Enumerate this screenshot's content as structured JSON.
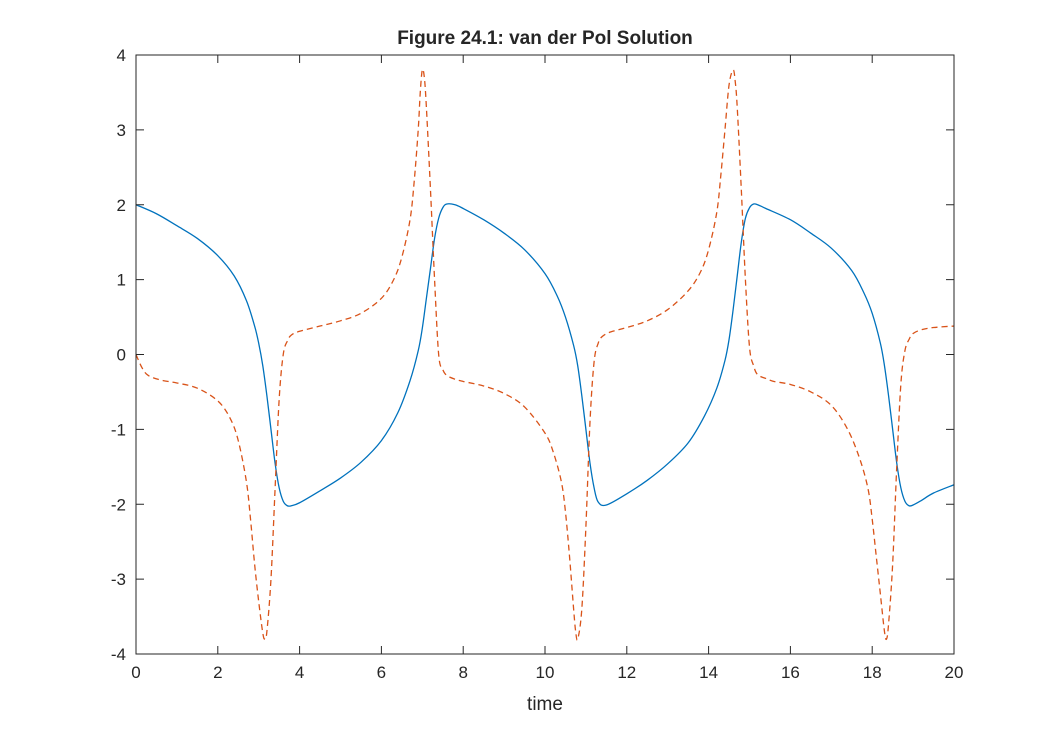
{
  "chart_data": {
    "type": "line",
    "title": "Figure 24.1: van der Pol Solution",
    "xlabel": "time",
    "ylabel": "",
    "xlim": [
      0,
      20
    ],
    "ylim": [
      -4,
      4
    ],
    "xticks": [
      0,
      2,
      4,
      6,
      8,
      10,
      12,
      14,
      16,
      18,
      20
    ],
    "yticks": [
      -4,
      -3,
      -2,
      -1,
      0,
      1,
      2,
      3,
      4
    ],
    "grid": false,
    "legend": "none",
    "series": [
      {
        "color": "#0072BD",
        "style": "solid",
        "x": [
          0,
          0.5,
          1,
          1.5,
          2,
          2.4,
          2.7,
          2.9,
          3.0,
          3.1,
          3.2,
          3.3,
          3.4,
          3.5,
          3.6,
          3.7,
          3.8,
          4.0,
          4.5,
          5,
          5.5,
          6,
          6.4,
          6.7,
          6.9,
          7.0,
          7.1,
          7.2,
          7.3,
          7.4,
          7.5,
          7.6,
          7.8,
          8.0,
          8.5,
          9,
          9.5,
          10,
          10.3,
          10.5,
          10.7,
          10.8,
          10.9,
          11.0,
          11.1,
          11.2,
          11.3,
          11.5,
          12,
          12.5,
          13,
          13.5,
          13.9,
          14.2,
          14.4,
          14.5,
          14.6,
          14.7,
          14.8,
          14.9,
          15.0,
          15.1,
          15.2,
          15.4,
          16,
          16.5,
          17,
          17.5,
          17.8,
          18.0,
          18.2,
          18.3,
          18.4,
          18.5,
          18.6,
          18.7,
          18.8,
          18.9,
          19.0,
          19.2,
          19.5,
          20
        ],
        "y": [
          2.0,
          1.88,
          1.72,
          1.55,
          1.32,
          1.05,
          0.72,
          0.38,
          0.15,
          -0.15,
          -0.55,
          -1.0,
          -1.45,
          -1.78,
          -1.96,
          -2.02,
          -2.02,
          -1.98,
          -1.82,
          -1.65,
          -1.44,
          -1.15,
          -0.78,
          -0.35,
          0.05,
          0.35,
          0.75,
          1.15,
          1.55,
          1.82,
          1.96,
          2.01,
          2.0,
          1.95,
          1.8,
          1.62,
          1.4,
          1.08,
          0.78,
          0.5,
          0.12,
          -0.15,
          -0.55,
          -1.0,
          -1.45,
          -1.78,
          -1.97,
          -2.01,
          -1.86,
          -1.68,
          -1.46,
          -1.18,
          -0.82,
          -0.45,
          -0.08,
          0.2,
          0.6,
          1.05,
          1.5,
          1.82,
          1.96,
          2.01,
          2.0,
          1.95,
          1.8,
          1.62,
          1.42,
          1.12,
          0.82,
          0.55,
          0.15,
          -0.15,
          -0.55,
          -1.0,
          -1.45,
          -1.78,
          -1.96,
          -2.02,
          -2.01,
          -1.95,
          -1.85,
          -1.74
        ]
      },
      {
        "color": "#D95319",
        "style": "dashed",
        "x": [
          0,
          0.15,
          0.3,
          0.6,
          1,
          1.5,
          2,
          2.3,
          2.5,
          2.7,
          2.8,
          2.9,
          3.0,
          3.1,
          3.15,
          3.2,
          3.3,
          3.4,
          3.5,
          3.6,
          3.7,
          3.8,
          4.0,
          4.5,
          5,
          5.5,
          6,
          6.3,
          6.5,
          6.7,
          6.8,
          6.9,
          6.95,
          7.0,
          7.05,
          7.1,
          7.2,
          7.3,
          7.4,
          7.5,
          7.6,
          7.8,
          8.0,
          8.5,
          9,
          9.5,
          10,
          10.2,
          10.4,
          10.5,
          10.6,
          10.7,
          10.75,
          10.8,
          10.9,
          11.0,
          11.1,
          11.2,
          11.3,
          11.4,
          11.6,
          12,
          12.5,
          13,
          13.5,
          13.8,
          14.0,
          14.2,
          14.3,
          14.4,
          14.5,
          14.6,
          14.65,
          14.7,
          14.8,
          14.9,
          15.0,
          15.1,
          15.2,
          15.4,
          15.6,
          16,
          16.5,
          17,
          17.4,
          17.7,
          17.9,
          18.0,
          18.1,
          18.2,
          18.3,
          18.35,
          18.4,
          18.5,
          18.6,
          18.7,
          18.8,
          18.9,
          19.0,
          19.2,
          19.5,
          20
        ],
        "y": [
          0.0,
          -0.18,
          -0.28,
          -0.34,
          -0.38,
          -0.45,
          -0.62,
          -0.85,
          -1.15,
          -1.7,
          -2.2,
          -2.8,
          -3.3,
          -3.72,
          -3.8,
          -3.7,
          -3.0,
          -1.8,
          -0.6,
          0.0,
          0.18,
          0.26,
          0.31,
          0.38,
          0.45,
          0.55,
          0.75,
          1.0,
          1.3,
          1.8,
          2.3,
          3.0,
          3.5,
          3.8,
          3.7,
          3.3,
          2.2,
          1.0,
          0.0,
          -0.2,
          -0.28,
          -0.33,
          -0.36,
          -0.42,
          -0.52,
          -0.7,
          -1.05,
          -1.3,
          -1.7,
          -2.1,
          -2.7,
          -3.4,
          -3.7,
          -3.8,
          -3.4,
          -2.3,
          -0.9,
          -0.1,
          0.15,
          0.24,
          0.3,
          0.36,
          0.45,
          0.6,
          0.85,
          1.1,
          1.4,
          1.9,
          2.4,
          3.0,
          3.6,
          3.8,
          3.65,
          3.3,
          2.2,
          1.0,
          0.1,
          -0.15,
          -0.27,
          -0.32,
          -0.36,
          -0.4,
          -0.5,
          -0.68,
          -1.0,
          -1.4,
          -1.8,
          -2.2,
          -2.7,
          -3.2,
          -3.7,
          -3.8,
          -3.6,
          -2.8,
          -1.5,
          -0.4,
          0.05,
          0.2,
          0.28,
          0.33,
          0.36,
          0.38
        ]
      }
    ]
  }
}
